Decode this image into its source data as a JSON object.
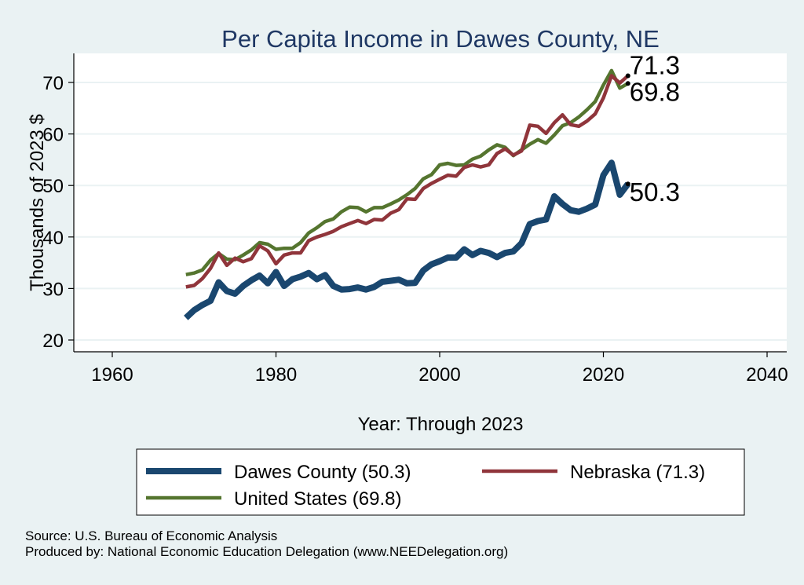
{
  "chart_data": {
    "type": "line",
    "title": "Per Capita Income in Dawes County, NE",
    "xlabel": "Year: Through 2023",
    "ylabel": "Thousands of 2023 $",
    "xlim": [
      1960,
      2040
    ],
    "ylim": [
      18,
      75
    ],
    "xticks": [
      1960,
      1980,
      2000,
      2020,
      2040
    ],
    "yticks": [
      20,
      30,
      40,
      50,
      60,
      70
    ],
    "grid": true,
    "x": [
      1969,
      1970,
      1971,
      1972,
      1973,
      1974,
      1975,
      1976,
      1977,
      1978,
      1979,
      1980,
      1981,
      1982,
      1983,
      1984,
      1985,
      1986,
      1987,
      1988,
      1989,
      1990,
      1991,
      1992,
      1993,
      1994,
      1995,
      1996,
      1997,
      1998,
      1999,
      2000,
      2001,
      2002,
      2003,
      2004,
      2005,
      2006,
      2007,
      2008,
      2009,
      2010,
      2011,
      2012,
      2013,
      2014,
      2015,
      2016,
      2017,
      2018,
      2019,
      2020,
      2021,
      2022,
      2023
    ],
    "series": [
      {
        "name": "Dawes County",
        "color": "#1a476f",
        "values": [
          24.3,
          25.8,
          26.8,
          27.6,
          31.2,
          29.5,
          29.0,
          30.5,
          31.6,
          32.5,
          31.0,
          33.2,
          30.5,
          31.8,
          32.3,
          33.0,
          31.8,
          32.6,
          30.5,
          29.8,
          29.9,
          30.2,
          29.8,
          30.3,
          31.3,
          31.5,
          31.7,
          31.0,
          31.1,
          33.5,
          34.7,
          35.3,
          36.0,
          36.0,
          37.6,
          36.5,
          37.3,
          36.9,
          36.1,
          36.9,
          37.2,
          38.8,
          42.5,
          43.1,
          43.4,
          47.9,
          46.4,
          45.2,
          44.9,
          45.5,
          46.3,
          52.0,
          54.4,
          48.2,
          50.3
        ],
        "end_label": "50.3"
      },
      {
        "name": "Nebraska",
        "color": "#90353b",
        "values": [
          30.3,
          30.6,
          31.9,
          33.9,
          36.9,
          34.5,
          35.9,
          35.2,
          35.8,
          38.3,
          37.3,
          34.8,
          36.5,
          36.9,
          36.9,
          39.3,
          40.0,
          40.5,
          41.1,
          42.0,
          42.6,
          43.2,
          42.6,
          43.4,
          43.3,
          44.6,
          45.3,
          47.4,
          47.3,
          49.4,
          50.4,
          51.2,
          52.0,
          51.8,
          53.5,
          54.0,
          53.6,
          54.0,
          56.2,
          57.1,
          55.9,
          56.7,
          61.7,
          61.5,
          60.1,
          62.2,
          63.7,
          61.8,
          61.5,
          62.5,
          63.9,
          67.0,
          71.3,
          69.9,
          71.3
        ],
        "end_label": "71.3"
      },
      {
        "name": "United States",
        "color": "#55752f",
        "values": [
          32.7,
          33.0,
          33.6,
          35.5,
          36.8,
          35.7,
          35.6,
          36.5,
          37.5,
          38.9,
          38.6,
          37.6,
          37.8,
          37.8,
          38.9,
          40.8,
          41.8,
          43.0,
          43.5,
          44.9,
          45.8,
          45.7,
          44.9,
          45.7,
          45.7,
          46.4,
          47.2,
          48.2,
          49.4,
          51.3,
          52.1,
          54.0,
          54.3,
          53.9,
          54.0,
          55.1,
          55.7,
          56.9,
          57.9,
          57.4,
          55.8,
          56.9,
          58.0,
          58.9,
          58.2,
          59.8,
          61.6,
          62.2,
          63.3,
          64.7,
          66.3,
          69.5,
          72.3,
          68.9,
          69.8
        ],
        "end_label": "69.8"
      }
    ],
    "legend": [
      "Dawes County (50.3)",
      "Nebraska (71.3)",
      "United States (69.8)"
    ],
    "legend_position": "bottom"
  },
  "notes": {
    "source": "Source: U.S. Bureau of Economic Analysis",
    "produced": "Produced by: National Economic Education Delegation (www.NEEDelegation.org)"
  }
}
